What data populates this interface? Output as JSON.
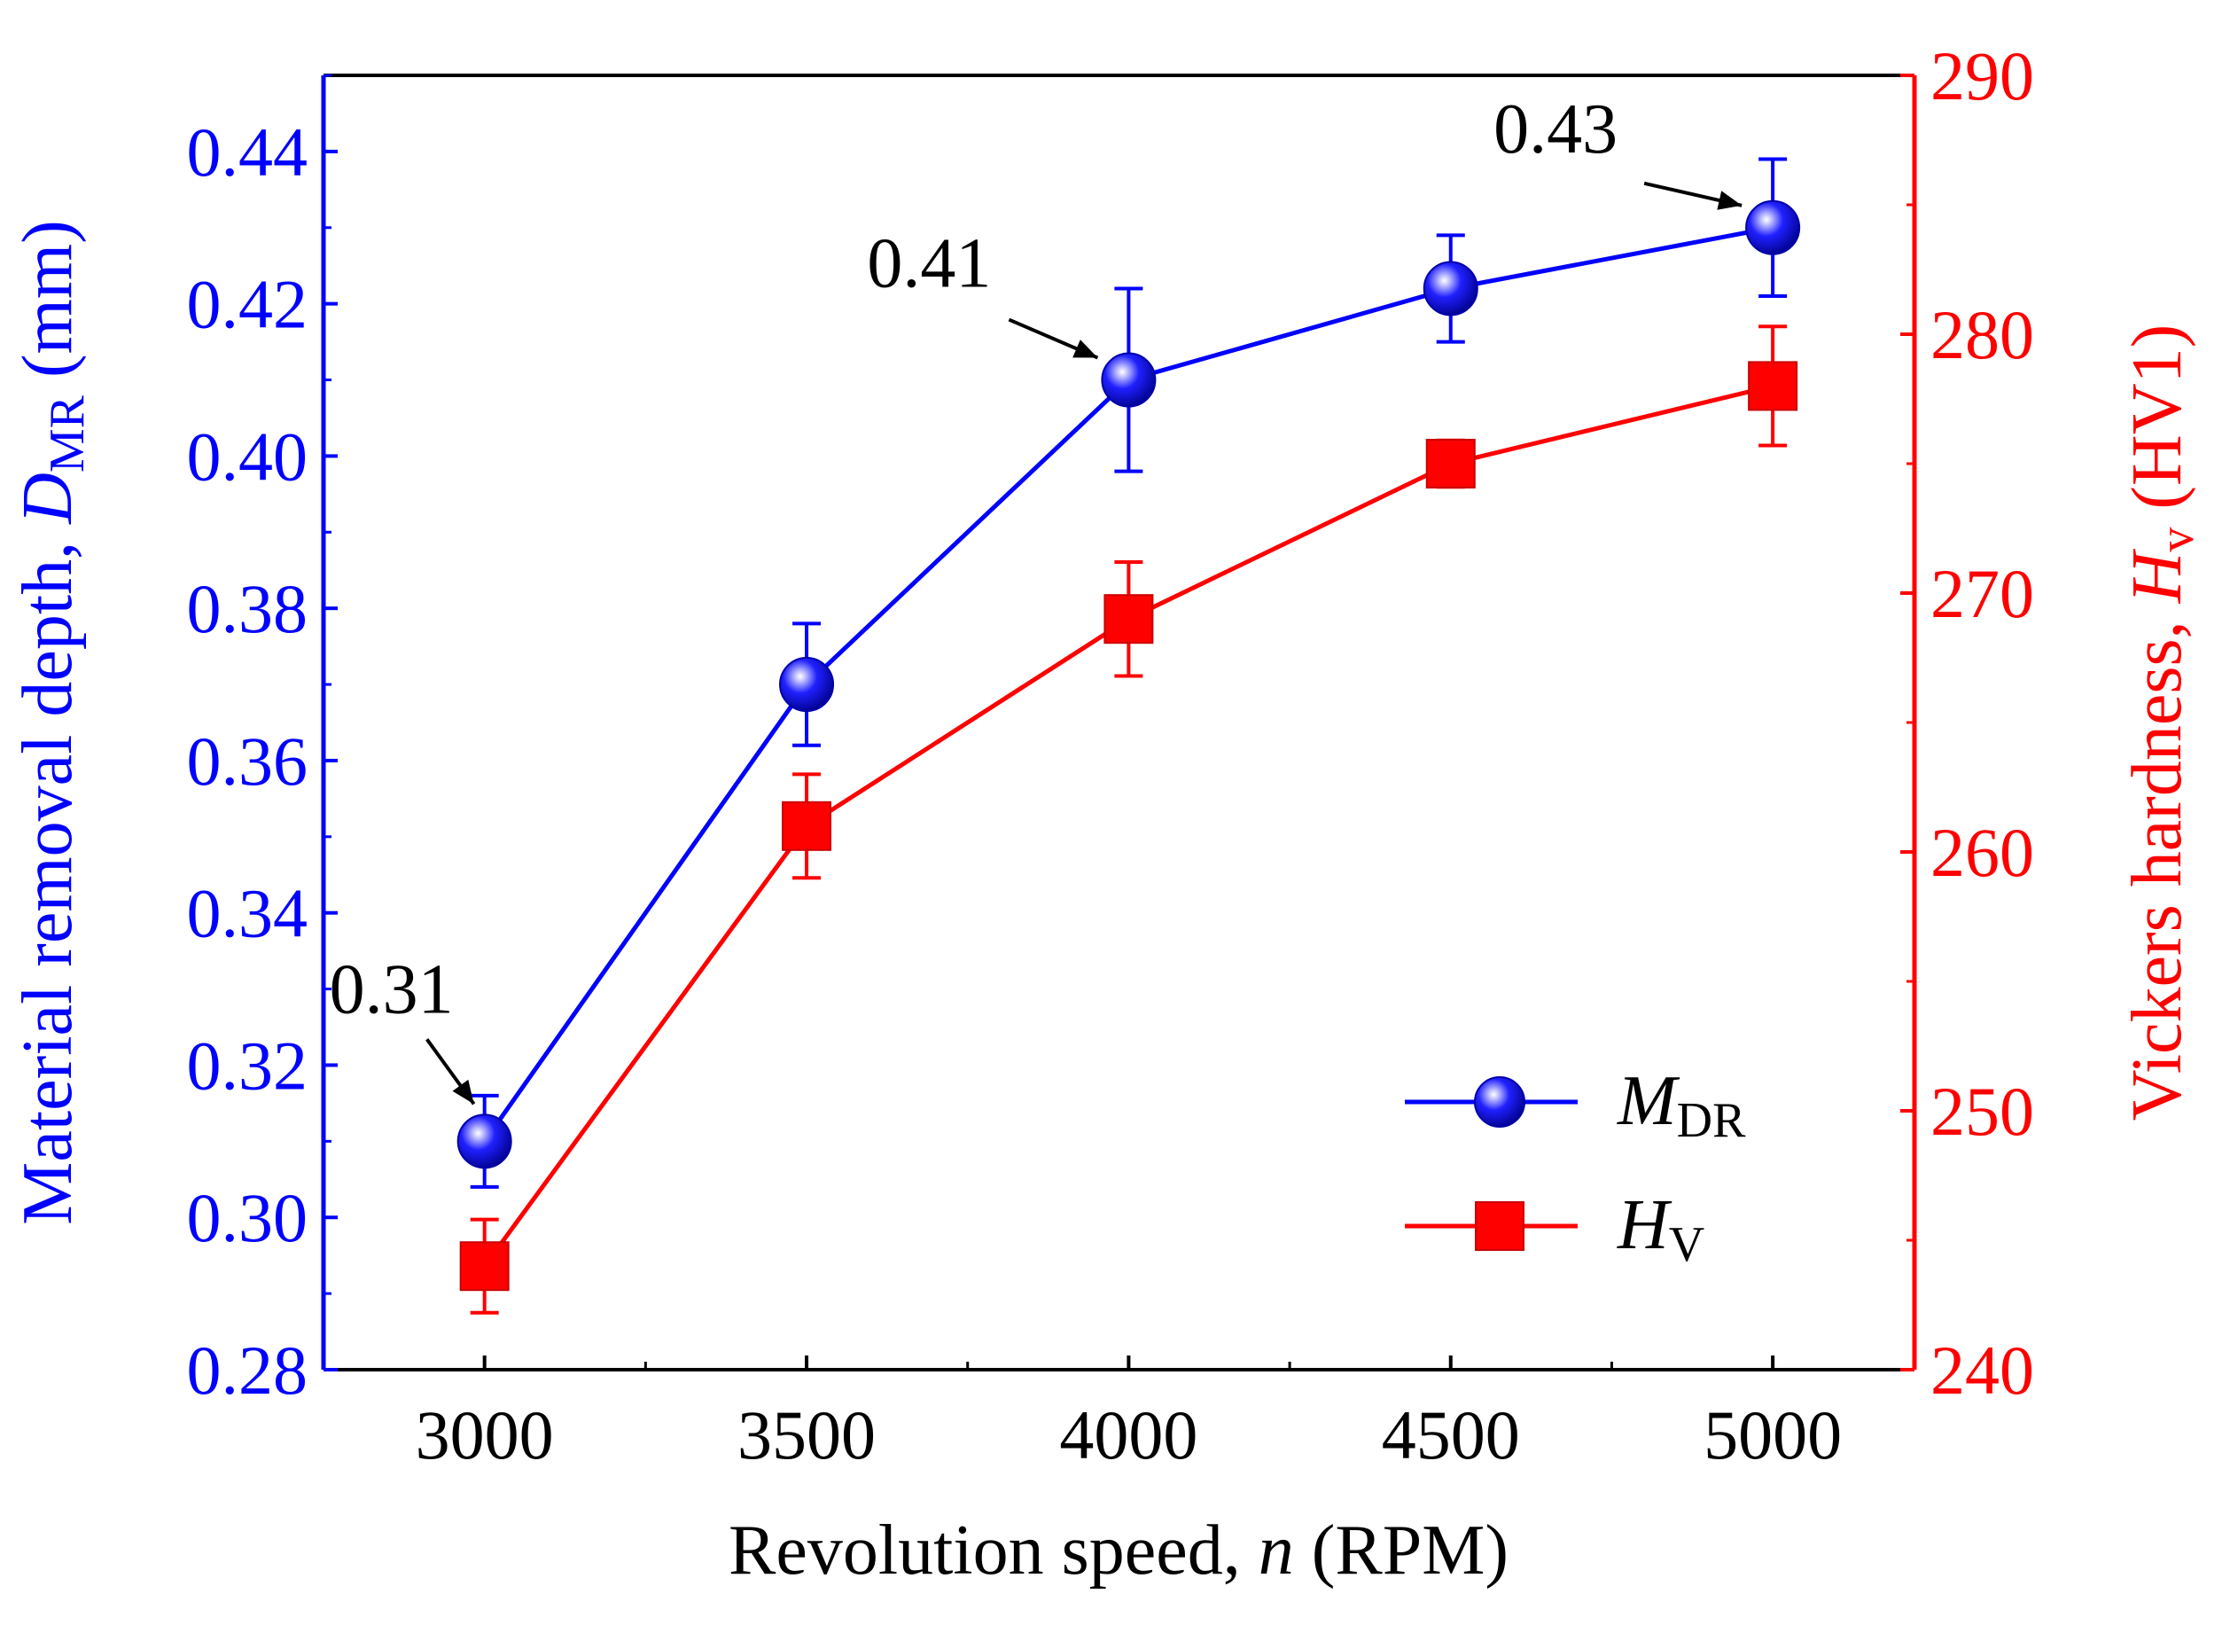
{
  "chart_data": {
    "type": "line",
    "x": [
      3000,
      3500,
      4000,
      4500,
      5000
    ],
    "x_ticks": [
      "3000",
      "3500",
      "4000",
      "4500",
      "5000"
    ],
    "xlim": [
      2750,
      5220
    ],
    "xlabel": {
      "main": "Revolution speed, ",
      "italic": "n",
      "unit": " (RPM)"
    },
    "y_left": {
      "label_main": "Material removal depth, ",
      "label_italic": "D",
      "label_sub": "MR",
      "label_unit": " (mm)",
      "ylim": [
        0.28,
        0.45
      ],
      "ticks": [
        "0.28",
        "0.30",
        "0.32",
        "0.34",
        "0.36",
        "0.38",
        "0.40",
        "0.42",
        "0.44"
      ],
      "color": "#0000ff"
    },
    "y_right": {
      "label_main": "Vickers hardness, ",
      "label_italic": "H",
      "label_sub": "v",
      "label_unit": " (HV1)",
      "ylim": [
        240,
        290
      ],
      "ticks": [
        "240",
        "250",
        "260",
        "270",
        "280",
        "290"
      ],
      "color": "#ff0000"
    },
    "series": [
      {
        "name_italic": "M",
        "name_sub": "DR",
        "axis": "left",
        "color": "#0000ff",
        "marker": "sphere",
        "values": [
          0.31,
          0.37,
          0.41,
          0.422,
          0.43
        ],
        "errors": [
          0.006,
          0.008,
          0.012,
          0.007,
          0.009
        ]
      },
      {
        "name_italic": "H",
        "name_sub": "V",
        "axis": "right",
        "color": "#ff0000",
        "marker": "square",
        "values": [
          244,
          261,
          269,
          275,
          278
        ],
        "errors": [
          1.8,
          2.0,
          2.2,
          0.9,
          2.3
        ]
      }
    ],
    "annotations": [
      {
        "text": "0.31",
        "x": 3000,
        "series": 0
      },
      {
        "text": "0.41",
        "x": 4000,
        "series": 0
      },
      {
        "text": "0.43",
        "x": 5000,
        "series": 0
      }
    ],
    "legend_position": "bottom-right"
  }
}
